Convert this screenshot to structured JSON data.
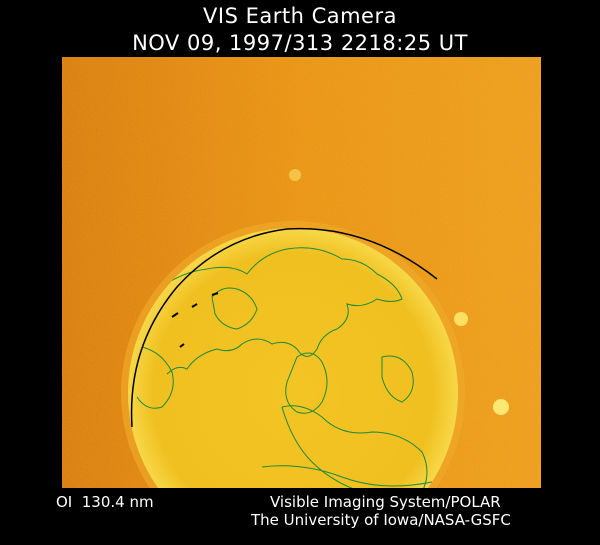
{
  "header": {
    "title": "VIS Earth Camera",
    "timestamp": "NOV 09, 1997/313 2218:25 UT"
  },
  "image": {
    "background_color": "#e8900e",
    "earth_color": "#f0c020",
    "coastline_color": "#1a8a3a",
    "terminator_color": "#000000"
  },
  "footer": {
    "band": "OI  130.4 nm",
    "credit_line1": "Visible Imaging System/POLAR",
    "credit_line2": "The University of Iowa/NASA-GSFC"
  }
}
